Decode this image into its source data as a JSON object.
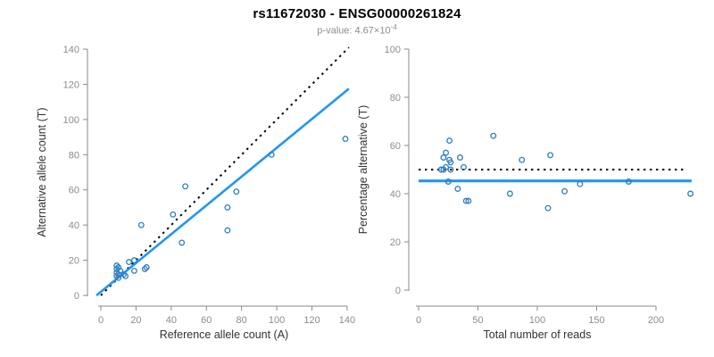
{
  "header": {
    "title": "rs11672030 - ENSG00000261824",
    "pvalue_prefix": "p-value: 4.67×10",
    "pvalue_exponent": "-4"
  },
  "style": {
    "axis_color": "#8a8a8a",
    "tick_label_color": "#8c8c8c",
    "axis_label_color": "#333333",
    "point_color": "#2e7ebe",
    "regression_color": "#2196f3",
    "identity_color": "#000000",
    "background": "#ffffff"
  },
  "chart_data": [
    {
      "type": "scatter",
      "title": "rs11672030 - ENSG00000261824",
      "xlabel": "Reference allele count (A)",
      "ylabel": "Alternative allele count (T)",
      "xlim": [
        0,
        140
      ],
      "ylim": [
        0,
        140
      ],
      "xticks": [
        0,
        20,
        40,
        60,
        80,
        100,
        120,
        140
      ],
      "yticks": [
        0,
        20,
        40,
        60,
        80,
        100,
        120,
        140
      ],
      "grid": false,
      "points": [
        [
          9,
          17
        ],
        [
          10,
          16
        ],
        [
          9,
          15
        ],
        [
          11,
          14
        ],
        [
          9,
          13
        ],
        [
          10,
          12
        ],
        [
          9,
          11
        ],
        [
          10,
          10
        ],
        [
          13,
          12
        ],
        [
          14,
          11
        ],
        [
          16,
          19
        ],
        [
          19,
          20
        ],
        [
          19,
          14
        ],
        [
          25,
          15
        ],
        [
          26,
          16
        ],
        [
          23,
          40
        ],
        [
          46,
          30
        ],
        [
          41,
          46
        ],
        [
          48,
          62
        ],
        [
          72,
          37
        ],
        [
          72,
          50
        ],
        [
          77,
          59
        ],
        [
          97,
          80
        ],
        [
          139,
          89
        ]
      ],
      "lines": [
        {
          "name": "identity-line",
          "style": "dotted",
          "color": "#000000",
          "width": 2,
          "from": [
            0,
            0
          ],
          "to": [
            141,
            141
          ]
        },
        {
          "name": "regression-line",
          "style": "solid",
          "color": "#2196f3",
          "width": 2.6,
          "from": [
            -2.5,
            0
          ],
          "to": [
            141,
            117.5
          ]
        }
      ]
    },
    {
      "type": "scatter",
      "xlabel": "Total number of reads",
      "ylabel": "Percentage alternative (T)",
      "xlim": [
        0,
        230
      ],
      "ylim": [
        0,
        100
      ],
      "xticks": [
        0,
        50,
        100,
        150,
        200
      ],
      "yticks": [
        0,
        20,
        40,
        60,
        80,
        100
      ],
      "grid": false,
      "points": [
        [
          19,
          50
        ],
        [
          21,
          50
        ],
        [
          27,
          50
        ],
        [
          23,
          57
        ],
        [
          21,
          55
        ],
        [
          26,
          54
        ],
        [
          35,
          55
        ],
        [
          27,
          53
        ],
        [
          23,
          51
        ],
        [
          38,
          51
        ],
        [
          26,
          62
        ],
        [
          25,
          45
        ],
        [
          33,
          42
        ],
        [
          40,
          37
        ],
        [
          42,
          37
        ],
        [
          63,
          64
        ],
        [
          77,
          40
        ],
        [
          87,
          54
        ],
        [
          109,
          34
        ],
        [
          111,
          56
        ],
        [
          123,
          41
        ],
        [
          136,
          44
        ],
        [
          177,
          45
        ],
        [
          229,
          40
        ]
      ],
      "lines": [
        {
          "name": "expected-50-line",
          "style": "dotted",
          "color": "#000000",
          "width": 2,
          "from": [
            0,
            50
          ],
          "to": [
            225,
            50
          ]
        },
        {
          "name": "fitted-line",
          "style": "solid",
          "color": "#2196f3",
          "width": 3.2,
          "from": [
            0,
            45.3
          ],
          "to": [
            230,
            45.3
          ]
        }
      ]
    }
  ]
}
